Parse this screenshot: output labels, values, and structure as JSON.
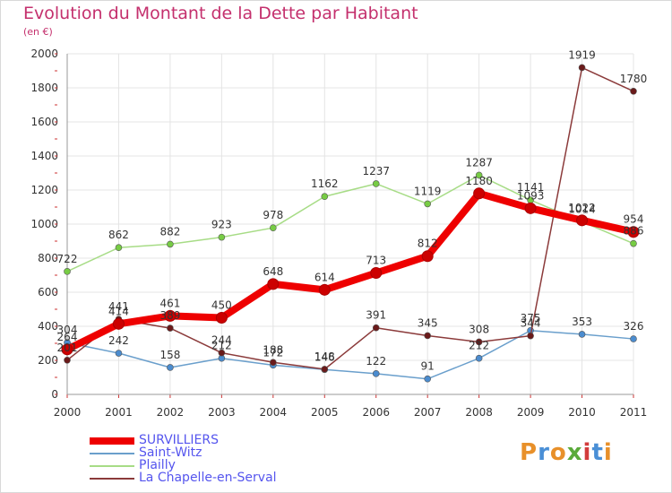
{
  "title": "Evolution du Montant de la Dette par Habitant",
  "subtitle": "(en €)",
  "logo": {
    "text": "Proxiti",
    "colors": [
      "#e8902a",
      "#4a8fd6",
      "#e8902a",
      "#5aaa3a",
      "#d23c3c",
      "#4a8fd6",
      "#e8902a"
    ]
  },
  "chart_data": {
    "type": "line",
    "title": "Evolution du Montant de la Dette par Habitant",
    "subtitle": "(en €)",
    "x": [
      "2000",
      "2001",
      "2002",
      "2003",
      "2004",
      "2005",
      "2006",
      "2007",
      "2008",
      "2009",
      "2010",
      "2011"
    ],
    "ylim": [
      0,
      2000
    ],
    "yticks": [
      "0",
      "200",
      "400",
      "600",
      "800",
      "1000",
      "1200",
      "1400",
      "1600",
      "1800",
      "2000"
    ],
    "grid": true,
    "legend_position": "bottom-left",
    "series": [
      {
        "name": "SURVILLIERS",
        "color": "#ee0000",
        "point_color": "#cc0000",
        "values": [
          264,
          414,
          461,
          450,
          648,
          614,
          713,
          812,
          1180,
          1093,
          1022,
          954
        ],
        "labels": [
          "264",
          "414",
          "461",
          "450",
          "648",
          "614",
          "713",
          "812",
          "1180",
          "1093",
          "1022",
          "954"
        ]
      },
      {
        "name": "Saint-Witz",
        "color": "#6a9fcc",
        "point_color": "#4b8ccf",
        "values": [
          304,
          242,
          158,
          212,
          172,
          146,
          122,
          91,
          212,
          375,
          353,
          326
        ],
        "labels": [
          "304",
          "242",
          "158",
          "212",
          "172",
          "146",
          "122",
          "91",
          "212",
          "375",
          "353",
          "326"
        ]
      },
      {
        "name": "Plailly",
        "color": "#a7dc86",
        "point_color": "#77cc44",
        "values": [
          722,
          862,
          882,
          923,
          978,
          1162,
          1237,
          1119,
          1287,
          1141,
          1014,
          886
        ],
        "labels": [
          "722",
          "862",
          "882",
          "923",
          "978",
          "1162",
          "1237",
          "1119",
          "1287",
          "1141",
          "1014",
          "886"
        ]
      },
      {
        "name": "La Chapelle-en-Serval",
        "color": "#8b3a3a",
        "point_color": "#6a1a1a",
        "values": [
          201,
          441,
          389,
          244,
          188,
          148,
          391,
          345,
          308,
          344,
          1919,
          1780
        ],
        "labels": [
          "201",
          "441",
          "389",
          "244",
          "188",
          "148",
          "391",
          "345",
          "308",
          "344",
          "1919",
          "1780"
        ]
      }
    ]
  }
}
